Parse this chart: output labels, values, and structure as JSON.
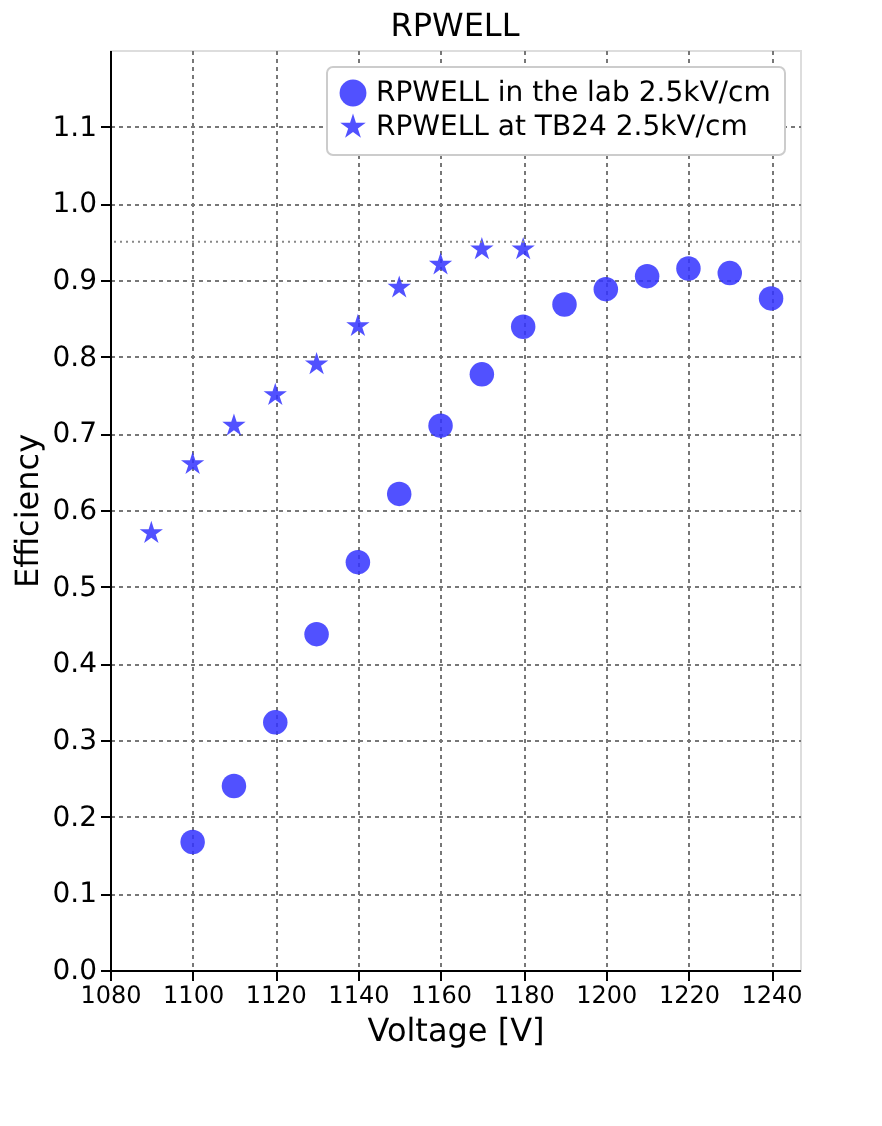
{
  "chart_data": {
    "type": "scatter",
    "title": "RPWELL",
    "xlabel": "Voltage [V]",
    "ylabel": "Efficiency",
    "xlim": [
      1080,
      1247
    ],
    "xticks": [
      1080,
      1100,
      1120,
      1140,
      1160,
      1180,
      1200,
      1220,
      1240
    ],
    "ylim": [
      0,
      1.2
    ],
    "yticks": [
      {
        "value": 0,
        "label": "0.0"
      },
      0.1,
      0.2,
      0.3,
      0.4,
      0.5,
      0.6,
      0.7,
      0.8,
      0.9,
      {
        "value": 1,
        "label": "1.0"
      },
      1.1
    ],
    "grid": true,
    "legend": "top right",
    "ref_lines": [
      {
        "axis": "y",
        "value": 0.95,
        "color": "#888888",
        "line_style": "dotted"
      }
    ],
    "series": [
      {
        "name": "RPWELL in the lab 2.5kV/cm",
        "color": "#3333ff",
        "marker": "circle",
        "x": [
          1100,
          1110,
          1120,
          1130,
          1140,
          1150,
          1160,
          1170,
          1180,
          1190,
          1200,
          1210,
          1220,
          1230,
          1240
        ],
        "values": [
          0.167,
          0.24,
          0.323,
          0.438,
          0.532,
          0.621,
          0.71,
          0.777,
          0.839,
          0.868,
          0.888,
          0.905,
          0.915,
          0.909,
          0.876
        ]
      },
      {
        "name": "RPWELL at TB24 2.5kV/cm",
        "color": "#3333ff",
        "marker": "star",
        "x": [
          1090,
          1100,
          1110,
          1120,
          1130,
          1140,
          1150,
          1160,
          1170,
          1180
        ],
        "values": [
          0.57,
          0.66,
          0.71,
          0.75,
          0.79,
          0.84,
          0.89,
          0.92,
          0.94,
          0.94
        ]
      }
    ]
  }
}
